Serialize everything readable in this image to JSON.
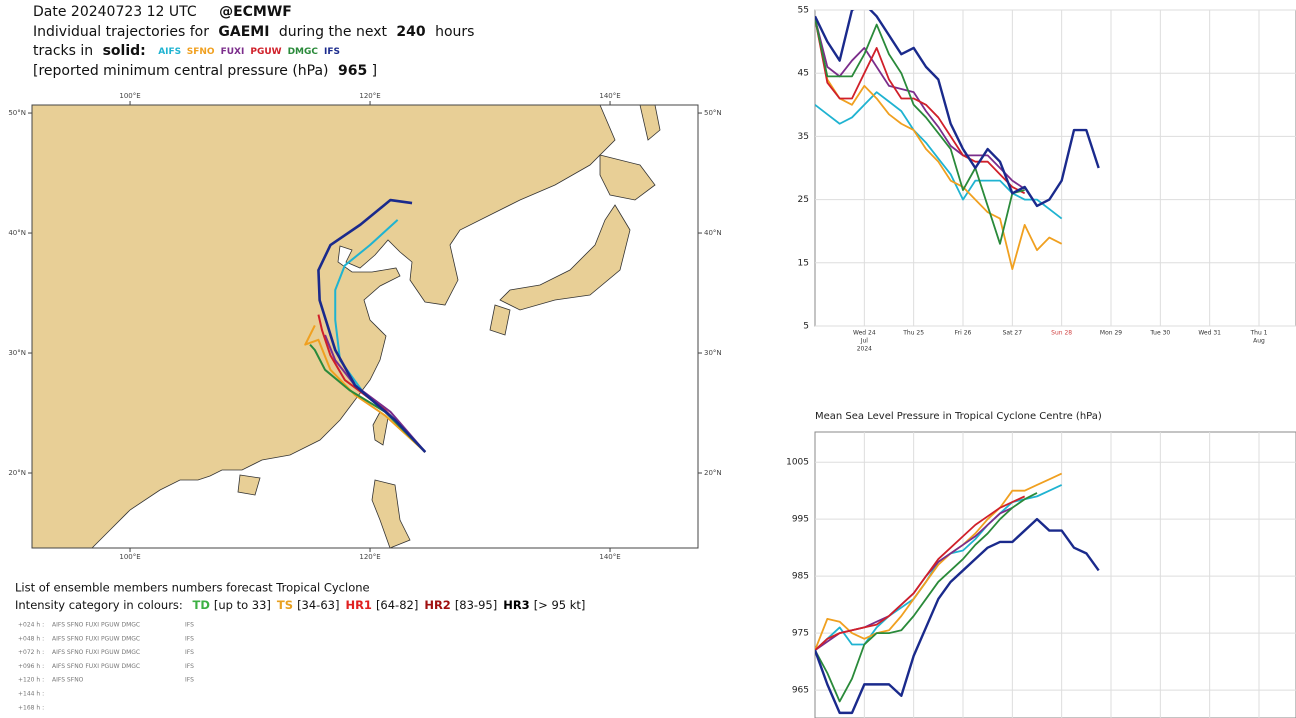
{
  "header": {
    "date": "Date 20240723 12 UTC",
    "source": "@ECMWF",
    "line2_pre": "Individual trajectories for",
    "storm": "GAEMI",
    "line2_mid": "during the next",
    "hours": 240,
    "line2_post": "hours",
    "line3_pre": "tracks in",
    "solid": "solid:",
    "line4_pre": "[reported minimum central pressure (hPa)",
    "pressure": 965,
    "line4_post": "]"
  },
  "legend": {
    "line1": "List of ensemble members numbers forecast Tropical Cyclone",
    "line2": "Intensity category in colours:",
    "categories": [
      {
        "name": "TD",
        "range": "[up to 33]",
        "color": "#3cb043"
      },
      {
        "name": "TS",
        "range": "[34-63]",
        "color": "#e8a020"
      },
      {
        "name": "HR1",
        "range": "[64-82]",
        "color": "#e02020"
      },
      {
        "name": "HR2",
        "range": "[83-95]",
        "color": "#a01010"
      },
      {
        "name": "HR3",
        "range": "[> 95 kt]",
        "color": "#000000"
      }
    ],
    "rows": [
      {
        "lead": "+024 h :",
        "members": "AIFS SFNO FUXI PGUW DMGC",
        "last": "IFS",
        "color": "#e8a050"
      },
      {
        "lead": "+048 h :",
        "members": "AIFS SFNO FUXI PGUW DMGC",
        "last": "IFS",
        "color": "#e8a050"
      },
      {
        "lead": "+072 h :",
        "members": "AIFS SFNO FUXI PGUW DMGC",
        "last": "IFS",
        "color": "#5cbf5c"
      },
      {
        "lead": "+096 h :",
        "members": "AIFS SFNO FUXI PGUW DMGC",
        "last": "IFS",
        "color": "#5cbf5c"
      },
      {
        "lead": "+120 h :",
        "members": "AIFS SFNO",
        "last": "IFS",
        "color": "#5cbf5c"
      },
      {
        "lead": "+144 h :"
      },
      {
        "lead": "+168 h :"
      }
    ]
  },
  "chart_data": [
    {
      "type": "map",
      "xlim": [
        91.83,
        147.33
      ],
      "ylim": [
        13.75,
        50.67
      ],
      "xticks": [
        {
          "value": 100,
          "label": "100°E"
        },
        {
          "value": 120,
          "label": "120°E"
        },
        {
          "value": 140,
          "label": "140°E"
        }
      ],
      "yticks": [
        {
          "value": 20,
          "label": "20°N"
        },
        {
          "value": 30,
          "label": "30°N"
        },
        {
          "value": 40,
          "label": "40°N"
        },
        {
          "value": 50,
          "label": "50°N"
        }
      ],
      "series": [
        {
          "name": "AIFS",
          "color": "#1fb3d1",
          "x": [
            124.6,
            121.7,
            119.6,
            117.5,
            117.1,
            117.1,
            117.9,
            120,
            122.3
          ],
          "values": [
            21.75,
            24.8,
            26.5,
            29.4,
            32.75,
            35.25,
            37.3,
            39,
            41.1
          ]
        },
        {
          "name": "SFNO",
          "color": "#f0a020",
          "x": [
            124.6,
            121.25,
            118.75,
            116.7,
            115.7,
            114.6,
            115.4
          ],
          "values": [
            21.75,
            24.8,
            26.5,
            28.6,
            31.1,
            30.7,
            32.3
          ]
        },
        {
          "name": "FUXI",
          "color": "#7b2d8b",
          "x": [
            124.6,
            121.7,
            118.75,
            117.1,
            116.25
          ],
          "values": [
            21.75,
            25.1,
            27.3,
            29.4,
            31.5
          ]
        },
        {
          "name": "PGUW",
          "color": "#d0202a",
          "x": [
            124.6,
            121.25,
            117.9,
            116.7,
            116,
            115.7
          ],
          "values": [
            21.75,
            25.25,
            27.75,
            29.8,
            31.9,
            33.2
          ]
        },
        {
          "name": "DMGC",
          "color": "#2a8a3a",
          "x": [
            124.6,
            121.25,
            118.3,
            116.25,
            115.4,
            115
          ],
          "values": [
            21.75,
            25.1,
            26.9,
            28.6,
            30.25,
            30.7
          ]
        },
        {
          "name": "IFS",
          "color": "#1a2a8c",
          "x": [
            124.6,
            122.1,
            118.75,
            117.1,
            115.8,
            115.7,
            116.7,
            119.2,
            121.7,
            123.5
          ],
          "values": [
            21.75,
            24.4,
            27.3,
            30.25,
            34.4,
            36.9,
            39,
            40.7,
            42.75,
            42.5
          ]
        }
      ]
    },
    {
      "type": "line",
      "xlim": [
        0,
        9.75
      ],
      "ylim": [
        5,
        55
      ],
      "grid": true,
      "yticks": [
        5,
        15,
        25,
        35,
        45,
        55
      ],
      "xticks": [
        {
          "value": 1,
          "label": "Wed 24",
          "month": "Jul",
          "year": "2024"
        },
        {
          "value": 2,
          "label": "Thu 25"
        },
        {
          "value": 3,
          "label": "Fri 26"
        },
        {
          "value": 4,
          "label": "Sat 27"
        },
        {
          "value": 5,
          "label": "Sun 28",
          "color": "#d04040"
        },
        {
          "value": 6,
          "label": "Mon 29"
        },
        {
          "value": 7,
          "label": "Tue 30"
        },
        {
          "value": 8,
          "label": "Wed 31"
        },
        {
          "value": 9,
          "label": "Thu 1",
          "month": "Aug"
        }
      ],
      "x": [
        0,
        0.25,
        0.5,
        0.75,
        1,
        1.25,
        1.5,
        1.75,
        2,
        2.25,
        2.5,
        2.75,
        3,
        3.25,
        3.5,
        3.75,
        4,
        4.25,
        4.5,
        4.75,
        5,
        5.25,
        5.5,
        5.75,
        6
      ],
      "series": [
        {
          "name": "AIFS",
          "color": "#1fb3d1",
          "values": [
            40,
            38.5,
            37,
            38,
            40,
            42,
            40.5,
            39,
            36,
            34,
            31.5,
            29,
            25,
            28,
            28,
            28,
            26,
            25,
            25,
            23.5,
            22,
            null,
            null,
            null,
            null
          ]
        },
        {
          "name": "SFNO",
          "color": "#f0a020",
          "values": [
            53.7,
            44,
            41,
            40,
            43,
            41,
            38.5,
            37,
            36,
            33,
            31,
            28,
            27,
            25,
            23,
            22,
            14,
            21,
            17,
            19,
            18,
            null,
            null,
            null,
            null
          ]
        },
        {
          "name": "FUXI",
          "color": "#7b2d8b",
          "values": [
            53.7,
            46,
            44.5,
            47,
            49,
            46,
            43,
            42.5,
            42,
            39,
            36.5,
            33.5,
            32,
            32,
            32,
            30,
            28,
            26.7,
            null,
            null,
            null,
            null,
            null,
            null,
            null
          ]
        },
        {
          "name": "PGUW",
          "color": "#d0202a",
          "values": [
            53.7,
            43.5,
            41,
            41,
            45,
            49,
            44,
            41,
            41,
            40,
            38,
            35,
            32,
            31,
            31,
            29,
            27,
            26,
            null,
            null,
            null,
            null,
            null,
            null,
            null
          ]
        },
        {
          "name": "DMGC",
          "color": "#2a8a3a",
          "values": [
            53.7,
            44.5,
            44.5,
            44.5,
            48,
            52.7,
            48,
            45,
            40,
            38,
            35.5,
            33,
            26.5,
            30,
            24,
            18,
            26,
            26.5,
            null,
            null,
            null,
            null,
            null,
            null,
            null
          ]
        },
        {
          "name": "IFS",
          "color": "#1a2a8c",
          "values": [
            54,
            50,
            47,
            55,
            56,
            54,
            51,
            48,
            49,
            46,
            44,
            37,
            33,
            30,
            33,
            31,
            26,
            27,
            24,
            25,
            28,
            36,
            36,
            30,
            null
          ]
        }
      ]
    },
    {
      "type": "line",
      "title": "Mean Sea Level Pressure in Tropical Cyclone Centre (hPa)",
      "xlim": [
        0,
        9.75
      ],
      "ylim": [
        960.1,
        1010.3
      ],
      "grid": true,
      "yticks": [
        965,
        975,
        985,
        995,
        1005
      ],
      "x": [
        0,
        0.25,
        0.5,
        0.75,
        1,
        1.25,
        1.5,
        1.75,
        2,
        2.25,
        2.5,
        2.75,
        3,
        3.25,
        3.5,
        3.75,
        4,
        4.25,
        4.5,
        4.75,
        5,
        5.25,
        5.5,
        5.75,
        6
      ],
      "series": [
        {
          "name": "AIFS",
          "color": "#1fb3d1",
          "values": [
            972,
            974,
            976,
            973,
            973,
            976,
            978,
            979.5,
            981,
            984,
            987.5,
            989,
            989.5,
            991.5,
            994,
            996,
            998,
            998.5,
            999,
            1000,
            1001,
            null,
            null,
            null,
            null
          ]
        },
        {
          "name": "SFNO",
          "color": "#f0a020",
          "values": [
            972,
            977.5,
            977,
            975,
            974,
            975,
            975.5,
            978,
            981,
            984,
            987,
            989,
            990.5,
            992.5,
            995,
            997,
            1000,
            1000,
            1001,
            1002,
            1003,
            null,
            null,
            null,
            null
          ]
        },
        {
          "name": "FUXI",
          "color": "#7b2d8b",
          "values": [
            972,
            973.5,
            975,
            975.5,
            976,
            977,
            978,
            980,
            982,
            985,
            987.5,
            989,
            990.5,
            992,
            994,
            996,
            997,
            null,
            null,
            null,
            null,
            null,
            null,
            null,
            null
          ]
        },
        {
          "name": "PGUW",
          "color": "#d0202a",
          "values": [
            972,
            974,
            975,
            975.5,
            976,
            976.5,
            978,
            980,
            982,
            985,
            988,
            990,
            992,
            994,
            995.5,
            997,
            998,
            999,
            null,
            null,
            null,
            null,
            null,
            null,
            null
          ]
        },
        {
          "name": "DMGC",
          "color": "#2a8a3a",
          "values": [
            972,
            968,
            963,
            967,
            973,
            975,
            975,
            975.5,
            978,
            981,
            984,
            986,
            988,
            990.5,
            992.5,
            995,
            997,
            998.5,
            999.6,
            null,
            null,
            null,
            null,
            null,
            null
          ]
        },
        {
          "name": "IFS",
          "color": "#1a2a8c",
          "values": [
            972,
            966,
            961,
            961,
            966,
            966,
            966,
            964,
            971,
            976,
            981,
            984,
            986,
            988,
            990,
            991,
            991,
            993,
            995,
            993,
            993,
            990,
            989,
            986,
            null
          ]
        }
      ]
    }
  ]
}
